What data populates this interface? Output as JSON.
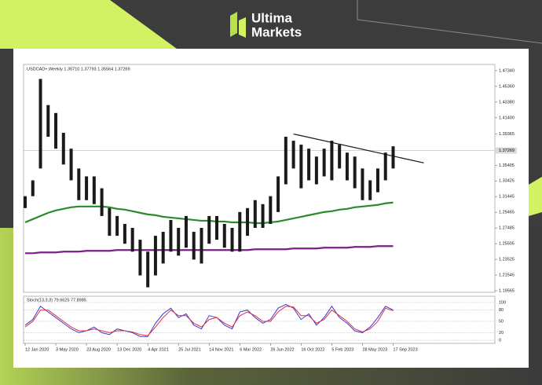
{
  "brand": {
    "line1": "Ultima",
    "line2": "Markets"
  },
  "chart_data": [
    {
      "type": "range_bar",
      "title": "USDCAD+,Weekly  1.35710 1.37793 1.35564 1.37269",
      "categories": [
        "12 Jan 2020",
        null,
        null,
        null,
        "3 May 2020",
        null,
        null,
        null,
        "23 Aug 2020",
        null,
        null,
        null,
        "13 Dec 2020",
        null,
        null,
        null,
        "4 Apr 2021",
        null,
        null,
        null,
        "25 Jul 2021",
        null,
        null,
        null,
        "14 Nov 2021",
        null,
        null,
        null,
        "6 Mar 2022",
        null,
        null,
        null,
        "26 Jun 2022",
        null,
        null,
        null,
        "16 Oct 2022",
        null,
        null,
        null,
        "5 Feb 2023",
        null,
        null,
        null,
        "28 May 2023",
        null,
        null,
        null,
        "17 Sep 2023"
      ],
      "high": [
        1.315,
        1.335,
        1.463,
        1.43,
        1.42,
        1.395,
        1.375,
        1.35,
        1.34,
        1.34,
        1.325,
        1.3,
        1.29,
        1.28,
        1.275,
        1.26,
        1.245,
        1.265,
        1.27,
        1.285,
        1.275,
        1.29,
        1.27,
        1.275,
        1.29,
        1.29,
        1.28,
        1.275,
        1.295,
        1.3,
        1.31,
        1.305,
        1.315,
        1.34,
        1.39,
        1.385,
        1.38,
        1.375,
        1.365,
        1.375,
        1.385,
        1.38,
        1.37,
        1.365,
        1.35,
        1.335,
        1.35,
        1.37,
        1.378
      ],
      "low": [
        1.3,
        1.315,
        1.35,
        1.39,
        1.375,
        1.355,
        1.335,
        1.31,
        1.31,
        1.305,
        1.29,
        1.265,
        1.265,
        1.255,
        1.245,
        1.215,
        1.2,
        1.215,
        1.23,
        1.245,
        1.24,
        1.25,
        1.235,
        1.23,
        1.255,
        1.26,
        1.25,
        1.245,
        1.245,
        1.265,
        1.275,
        1.275,
        1.28,
        1.295,
        1.33,
        1.35,
        1.325,
        1.335,
        1.33,
        1.34,
        1.335,
        1.35,
        1.335,
        1.325,
        1.31,
        1.31,
        1.32,
        1.335,
        1.35
      ],
      "color": "#1a1a1a",
      "series": [
        {
          "color": "#2b8a2b",
          "values": [
            1.282,
            1.286,
            1.29,
            1.294,
            1.297,
            1.299,
            1.301,
            1.302,
            1.302,
            1.302,
            1.302,
            1.301,
            1.299,
            1.298,
            1.296,
            1.294,
            1.292,
            1.291,
            1.289,
            1.288,
            1.287,
            1.286,
            1.285,
            1.284,
            1.284,
            1.283,
            1.283,
            1.282,
            1.282,
            1.282,
            1.281,
            1.281,
            1.282,
            1.283,
            1.285,
            1.287,
            1.289,
            1.291,
            1.293,
            1.295,
            1.296,
            1.298,
            1.299,
            1.301,
            1.302,
            1.303,
            1.304,
            1.306,
            1.307
          ]
        },
        {
          "color": "#7a1f85",
          "values": [
            1.243,
            1.243,
            1.244,
            1.244,
            1.244,
            1.245,
            1.245,
            1.245,
            1.246,
            1.246,
            1.246,
            1.246,
            1.247,
            1.247,
            1.247,
            1.247,
            1.247,
            1.247,
            1.247,
            1.247,
            1.247,
            1.247,
            1.247,
            1.247,
            1.247,
            1.247,
            1.247,
            1.247,
            1.247,
            1.247,
            1.248,
            1.248,
            1.248,
            1.248,
            1.248,
            1.249,
            1.249,
            1.249,
            1.249,
            1.25,
            1.25,
            1.25,
            1.25,
            1.251,
            1.251,
            1.251,
            1.252,
            1.252,
            1.252
          ]
        }
      ],
      "trendline": {
        "x": [
          35,
          52
        ],
        "values": [
          1.3935,
          1.357
        ]
      },
      "last_price": 1.37269,
      "ylim": [
        1.1937,
        1.4813
      ],
      "yticks": [
        {
          "value": 1.4734,
          "label": "1.47340"
        },
        {
          "value": 1.4536,
          "label": "1.45360"
        },
        {
          "value": 1.4338,
          "label": "1.43380"
        },
        {
          "value": 1.414,
          "label": "1.41400"
        },
        {
          "value": 1.39365,
          "label": "1.39365"
        },
        {
          "value": 1.35405,
          "label": "1.35405"
        },
        {
          "value": 1.33425,
          "label": "1.33425"
        },
        {
          "value": 1.31445,
          "label": "1.31445"
        },
        {
          "value": 1.29465,
          "label": "1.29465"
        },
        {
          "value": 1.27485,
          "label": "1.27485"
        },
        {
          "value": 1.25505,
          "label": "1.25505"
        },
        {
          "value": 1.23525,
          "label": "1.23525"
        },
        {
          "value": 1.21545,
          "label": "1.21545"
        },
        {
          "value": 1.19565,
          "label": "1.19565"
        }
      ]
    },
    {
      "type": "line",
      "title": "Stoch(13,3,3) 79.6625 77.8985",
      "series": [
        {
          "color": "#3b3bd6",
          "values": [
            40,
            55,
            90,
            75,
            60,
            45,
            30,
            20,
            25,
            35,
            20,
            15,
            30,
            25,
            20,
            10,
            10,
            45,
            70,
            85,
            60,
            70,
            40,
            30,
            65,
            60,
            40,
            30,
            75,
            80,
            60,
            45,
            55,
            85,
            95,
            85,
            55,
            70,
            40,
            60,
            90,
            60,
            45,
            25,
            20,
            35,
            60,
            90,
            80
          ]
        },
        {
          "color": "#e0303a",
          "values": [
            35,
            50,
            80,
            80,
            65,
            50,
            35,
            25,
            25,
            30,
            25,
            20,
            25,
            25,
            22,
            15,
            12,
            35,
            60,
            80,
            65,
            65,
            45,
            35,
            55,
            60,
            45,
            35,
            65,
            75,
            65,
            50,
            50,
            75,
            90,
            88,
            65,
            65,
            45,
            55,
            80,
            65,
            50,
            30,
            22,
            30,
            50,
            85,
            78
          ]
        }
      ],
      "ylim": [
        0,
        100
      ],
      "yticks": [
        0,
        20,
        50,
        80,
        100
      ]
    }
  ]
}
